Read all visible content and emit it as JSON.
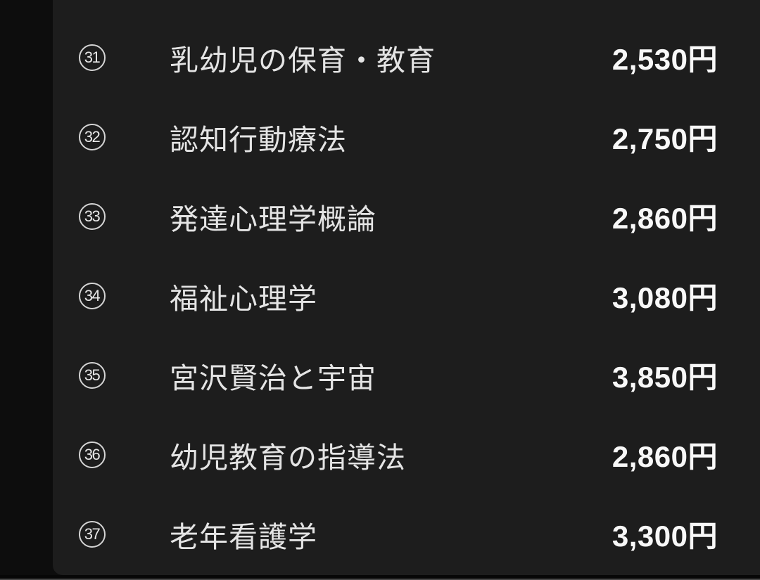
{
  "list": {
    "items": [
      {
        "number": "31",
        "title": "乳幼児の保育・教育",
        "price": "2,530円"
      },
      {
        "number": "32",
        "title": "認知行動療法",
        "price": "2,750円"
      },
      {
        "number": "33",
        "title": "発達心理学概論",
        "price": "2,860円"
      },
      {
        "number": "34",
        "title": "福祉心理学",
        "price": "3,080円"
      },
      {
        "number": "35",
        "title": "宮沢賢治と宇宙",
        "price": "3,850円"
      },
      {
        "number": "36",
        "title": "幼児教育の指導法",
        "price": "2,860円"
      },
      {
        "number": "37",
        "title": "老年看護学",
        "price": "3,300円"
      }
    ]
  },
  "colors": {
    "left_gutter_bg": "#0d0d0d",
    "panel_bg": "#1d1d1d",
    "bottom_bar": "#070707",
    "bottom_edge_line": "#474747",
    "title_text": "#e4e4e4",
    "price_text": "#f8f8f8",
    "circle_badge": "#d4d4d4"
  }
}
